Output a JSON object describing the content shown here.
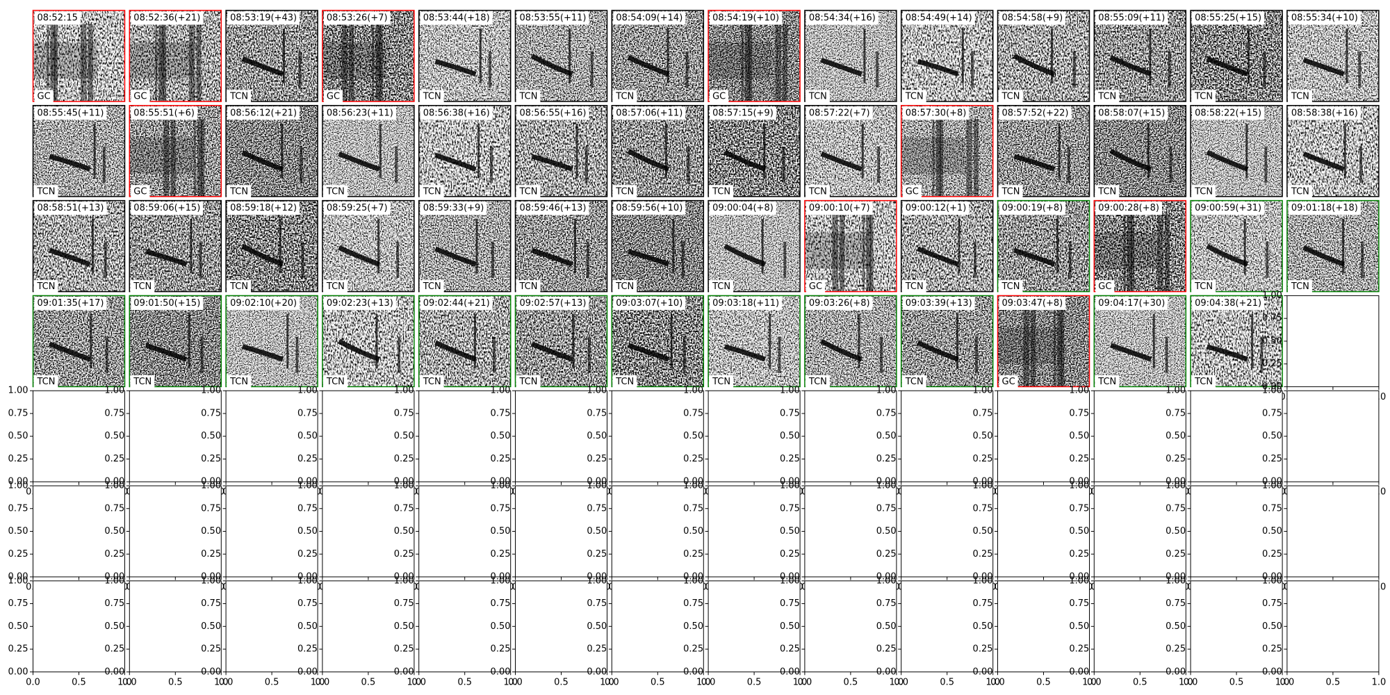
{
  "panels": [
    {
      "time": "08:52:15",
      "label": "GC",
      "border": "red"
    },
    {
      "time": "08:52:36(+21)",
      "label": "GC",
      "border": "red"
    },
    {
      "time": "08:53:19(+43)",
      "label": "TCN",
      "border": "black"
    },
    {
      "time": "08:53:26(+7)",
      "label": "GC",
      "border": "red"
    },
    {
      "time": "08:53:44(+18)",
      "label": "TCN",
      "border": "black"
    },
    {
      "time": "08:53:55(+11)",
      "label": "TCN",
      "border": "black"
    },
    {
      "time": "08:54:09(+14)",
      "label": "TCN",
      "border": "black"
    },
    {
      "time": "08:54:19(+10)",
      "label": "GC",
      "border": "red"
    },
    {
      "time": "08:54:34(+16)",
      "label": "TCN",
      "border": "black"
    },
    {
      "time": "08:54:49(+14)",
      "label": "TCN",
      "border": "black"
    },
    {
      "time": "08:54:58(+9)",
      "label": "TCN",
      "border": "black"
    },
    {
      "time": "08:55:09(+11)",
      "label": "TCN",
      "border": "black"
    },
    {
      "time": "08:55:25(+15)",
      "label": "TCN",
      "border": "black"
    },
    {
      "time": "08:55:34(+10)",
      "label": "TCN",
      "border": "black"
    },
    {
      "time": "08:55:45(+11)",
      "label": "TCN",
      "border": "black"
    },
    {
      "time": "08:55:51(+6)",
      "label": "GC",
      "border": "red"
    },
    {
      "time": "08:56:12(+21)",
      "label": "TCN",
      "border": "black"
    },
    {
      "time": "08:56:23(+11)",
      "label": "TCN",
      "border": "black"
    },
    {
      "time": "08:56:38(+16)",
      "label": "TCN",
      "border": "black"
    },
    {
      "time": "08:56:55(+16)",
      "label": "TCN",
      "border": "black"
    },
    {
      "time": "08:57:06(+11)",
      "label": "TCN",
      "border": "black"
    },
    {
      "time": "08:57:15(+9)",
      "label": "TCN",
      "border": "black"
    },
    {
      "time": "08:57:22(+7)",
      "label": "TCN",
      "border": "black"
    },
    {
      "time": "08:57:30(+8)",
      "label": "GC",
      "border": "red"
    },
    {
      "time": "08:57:52(+22)",
      "label": "TCN",
      "border": "black"
    },
    {
      "time": "08:58:07(+15)",
      "label": "TCN",
      "border": "black"
    },
    {
      "time": "08:58:22(+15)",
      "label": "TCN",
      "border": "black"
    },
    {
      "time": "08:58:38(+16)",
      "label": "TCN",
      "border": "black"
    },
    {
      "time": "08:58:51(+13)",
      "label": "TCN",
      "border": "black"
    },
    {
      "time": "08:59:06(+15)",
      "label": "TCN",
      "border": "black"
    },
    {
      "time": "08:59:18(+12)",
      "label": "TCN",
      "border": "black"
    },
    {
      "time": "08:59:25(+7)",
      "label": "TCN",
      "border": "black"
    },
    {
      "time": "08:59:33(+9)",
      "label": "TCN",
      "border": "black"
    },
    {
      "time": "08:59:46(+13)",
      "label": "TCN",
      "border": "black"
    },
    {
      "time": "08:59:56(+10)",
      "label": "TCN",
      "border": "black"
    },
    {
      "time": "09:00:04(+8)",
      "label": "TCN",
      "border": "black"
    },
    {
      "time": "09:00:10(+7)",
      "label": "GC",
      "border": "red"
    },
    {
      "time": "09:00:12(+1)",
      "label": "TCN",
      "border": "black"
    },
    {
      "time": "09:00:19(+8)",
      "label": "TCN",
      "border": "green"
    },
    {
      "time": "09:00:28(+8)",
      "label": "GC",
      "border": "red"
    },
    {
      "time": "09:00:59(+31)",
      "label": "TCN",
      "border": "green"
    },
    {
      "time": "09:01:18(+18)",
      "label": "TCN",
      "border": "green"
    },
    {
      "time": "09:01:35(+17)",
      "label": "TCN",
      "border": "green"
    },
    {
      "time": "09:01:50(+15)",
      "label": "TCN",
      "border": "green"
    },
    {
      "time": "09:02:10(+20)",
      "label": "TCN",
      "border": "green"
    },
    {
      "time": "09:02:23(+13)",
      "label": "TCN",
      "border": "green"
    },
    {
      "time": "09:02:44(+21)",
      "label": "TCN",
      "border": "green"
    },
    {
      "time": "09:02:57(+13)",
      "label": "TCN",
      "border": "green"
    },
    {
      "time": "09:03:07(+10)",
      "label": "TCN",
      "border": "green"
    },
    {
      "time": "09:03:18(+11)",
      "label": "TCN",
      "border": "green"
    },
    {
      "time": "09:03:26(+8)",
      "label": "TCN",
      "border": "green"
    },
    {
      "time": "09:03:39(+13)",
      "label": "TCN",
      "border": "green"
    },
    {
      "time": "09:03:47(+8)",
      "label": "GC",
      "border": "red"
    },
    {
      "time": "09:04:17(+30)",
      "label": "TCN",
      "border": "green"
    },
    {
      "time": "09:04:38(+21)",
      "label": "TCN",
      "border": "green"
    }
  ],
  "empty_axes": {
    "xlim": [
      0,
      1
    ],
    "ylim": [
      0,
      1
    ],
    "xticks": [
      {
        "value": 0,
        "label": "0.0"
      },
      {
        "value": 0.5,
        "label": "0.5"
      },
      {
        "value": 1,
        "label": "1.0"
      }
    ],
    "yticks": [
      {
        "value": 0,
        "label": "0.00"
      },
      {
        "value": 0.25,
        "label": "0.25"
      },
      {
        "value": 0.5,
        "label": "0.50"
      },
      {
        "value": 0.75,
        "label": "0.75"
      },
      {
        "value": 1,
        "label": "1.00"
      }
    ]
  }
}
